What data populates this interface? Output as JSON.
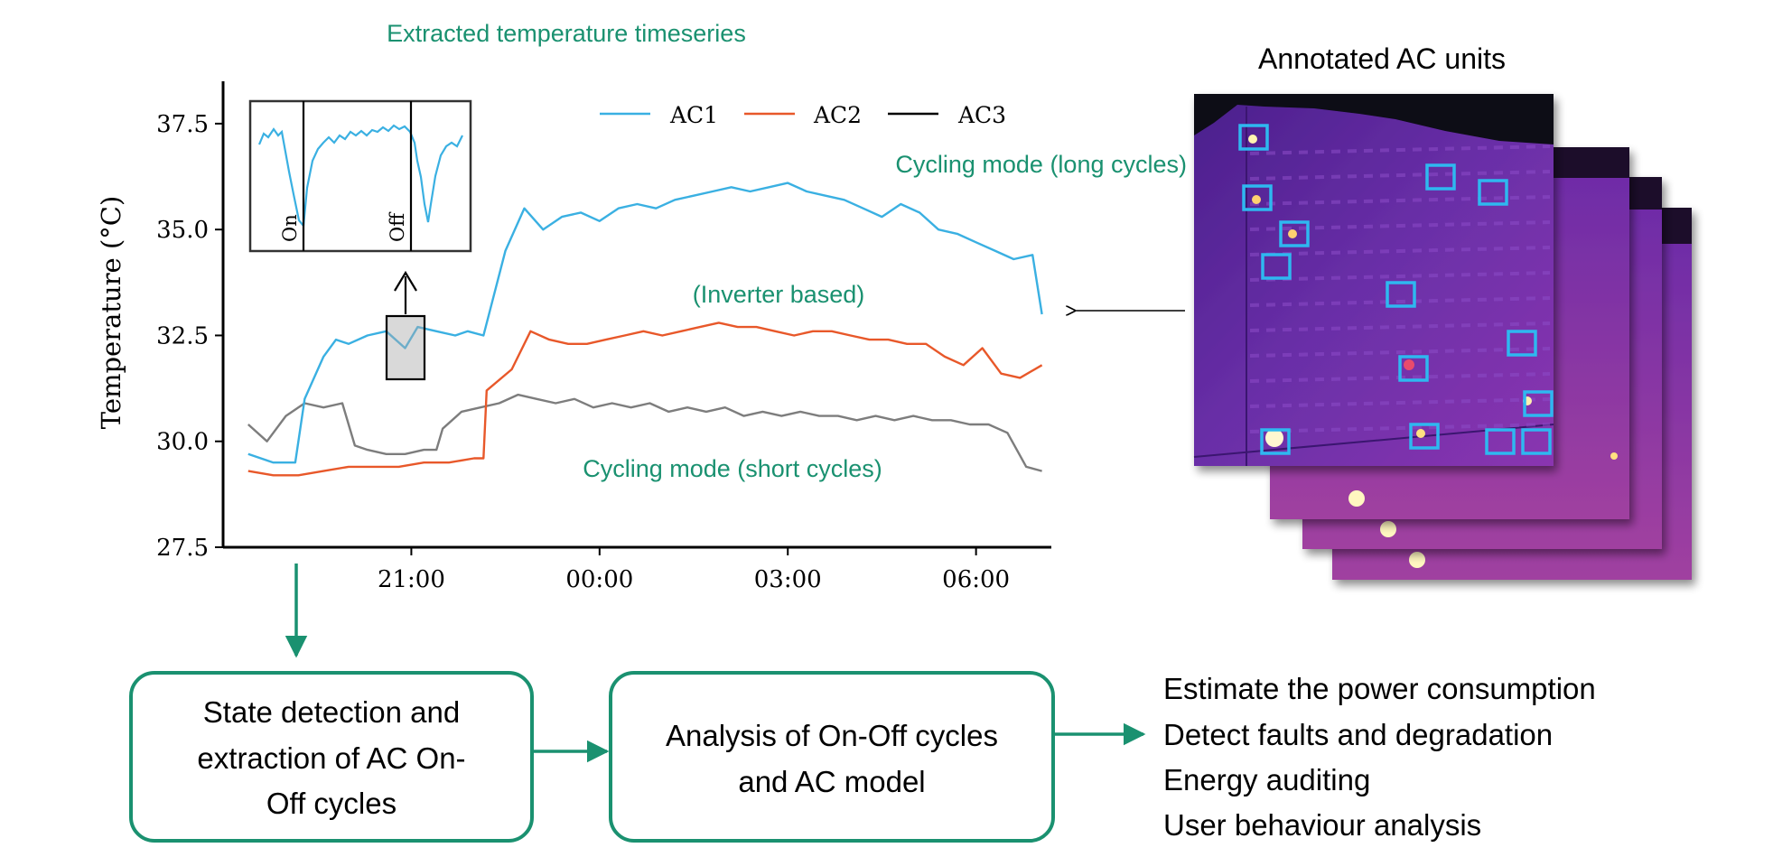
{
  "colors": {
    "ac1": "#3ab0e2",
    "ac2": "#e8582a",
    "ac3": "#7d7d7d",
    "accent": "#1a9170",
    "box_stroke": "#1a9170",
    "thermal_bg": "#5a2a9a"
  },
  "chart_title": "Extracted temperature timeseries",
  "annotations": {
    "long_cycles": "Cycling mode  (long cycles)",
    "inverter": "(Inverter based)",
    "short_cycles": "Cycling mode (short cycles)"
  },
  "inset": {
    "on_label": "On",
    "off_label": "Off"
  },
  "thermal": {
    "title": "Annotated AC units"
  },
  "process": {
    "box1": [
      "State detection and",
      "extraction of AC On-",
      "Off cycles"
    ],
    "box2": [
      "Analysis of On-Off cycles",
      "and AC model"
    ]
  },
  "applications": [
    "Estimate the power consumption",
    "Detect faults and degradation",
    "Energy auditing",
    "User behaviour analysis"
  ],
  "chart_data": {
    "type": "line",
    "title": "Extracted temperature timeseries",
    "xlabel": "",
    "ylabel": "Temperature (°C)",
    "ylim": [
      27.5,
      38.5
    ],
    "xlim": [
      18.0,
      31.2
    ],
    "yticks": [
      27.5,
      30.0,
      32.5,
      35.0,
      37.5
    ],
    "ytick_labels": [
      "27.5",
      "30.0",
      "32.5",
      "35.0",
      "37.5"
    ],
    "xticks": [
      21.0,
      24.0,
      27.0,
      30.0
    ],
    "xtick_labels": [
      "21:00",
      "00:00",
      "03:00",
      "06:00"
    ],
    "legend_position": "top-right",
    "series": [
      {
        "name": "AC1",
        "x": [
          18.4,
          18.8,
          19.15,
          19.3,
          19.6,
          19.8,
          20.0,
          20.3,
          20.6,
          20.9,
          21.1,
          21.4,
          21.7,
          21.9,
          22.15,
          22.5,
          22.8,
          23.1,
          23.4,
          23.7,
          24.0,
          24.3,
          24.6,
          24.9,
          25.2,
          25.5,
          25.8,
          26.1,
          26.4,
          26.7,
          27.0,
          27.3,
          27.6,
          27.9,
          28.2,
          28.5,
          28.8,
          29.1,
          29.4,
          29.7,
          30.0,
          30.3,
          30.6,
          30.9,
          31.05
        ],
        "y": [
          29.7,
          29.5,
          29.5,
          31.0,
          32.0,
          32.4,
          32.3,
          32.5,
          32.6,
          32.2,
          32.7,
          32.6,
          32.5,
          32.6,
          32.5,
          34.5,
          35.5,
          35.0,
          35.3,
          35.4,
          35.2,
          35.5,
          35.6,
          35.5,
          35.7,
          35.8,
          35.9,
          36.0,
          35.9,
          36.0,
          36.1,
          35.9,
          35.8,
          35.7,
          35.5,
          35.3,
          35.6,
          35.4,
          35.0,
          34.9,
          34.7,
          34.5,
          34.3,
          34.4,
          33.0
        ]
      },
      {
        "name": "AC2",
        "x": [
          18.4,
          18.8,
          19.2,
          19.6,
          20.0,
          20.4,
          20.8,
          21.2,
          21.6,
          22.0,
          22.15,
          22.2,
          22.6,
          22.9,
          23.2,
          23.5,
          23.8,
          24.1,
          24.4,
          24.7,
          25.0,
          25.3,
          25.6,
          25.9,
          26.2,
          26.5,
          26.8,
          27.1,
          27.4,
          27.7,
          28.0,
          28.3,
          28.6,
          28.9,
          29.2,
          29.5,
          29.8,
          30.1,
          30.4,
          30.7,
          31.05
        ],
        "y": [
          29.3,
          29.2,
          29.2,
          29.3,
          29.4,
          29.4,
          29.4,
          29.5,
          29.5,
          29.6,
          29.6,
          31.2,
          31.7,
          32.6,
          32.4,
          32.3,
          32.3,
          32.4,
          32.5,
          32.6,
          32.5,
          32.6,
          32.7,
          32.8,
          32.7,
          32.7,
          32.6,
          32.5,
          32.6,
          32.6,
          32.5,
          32.4,
          32.4,
          32.3,
          32.3,
          32.0,
          31.8,
          32.2,
          31.6,
          31.5,
          31.8
        ]
      },
      {
        "name": "AC3",
        "x": [
          18.4,
          18.7,
          19.0,
          19.3,
          19.6,
          19.9,
          20.1,
          20.3,
          20.6,
          20.9,
          21.2,
          21.4,
          21.5,
          21.8,
          22.1,
          22.4,
          22.7,
          23.0,
          23.3,
          23.6,
          23.9,
          24.2,
          24.5,
          24.8,
          25.1,
          25.4,
          25.7,
          26.0,
          26.3,
          26.6,
          26.9,
          27.2,
          27.5,
          27.8,
          28.1,
          28.4,
          28.7,
          29.0,
          29.3,
          29.6,
          29.9,
          30.2,
          30.5,
          30.8,
          31.05
        ],
        "y": [
          30.4,
          30.0,
          30.6,
          30.9,
          30.8,
          30.9,
          29.9,
          29.8,
          29.7,
          29.7,
          29.8,
          29.8,
          30.3,
          30.7,
          30.8,
          30.9,
          31.1,
          31.0,
          30.9,
          31.0,
          30.8,
          30.9,
          30.8,
          30.9,
          30.7,
          30.8,
          30.7,
          30.8,
          30.6,
          30.7,
          30.6,
          30.7,
          30.6,
          30.6,
          30.5,
          30.6,
          30.5,
          30.6,
          30.5,
          30.5,
          30.4,
          30.4,
          30.2,
          29.4,
          29.3
        ]
      }
    ]
  }
}
